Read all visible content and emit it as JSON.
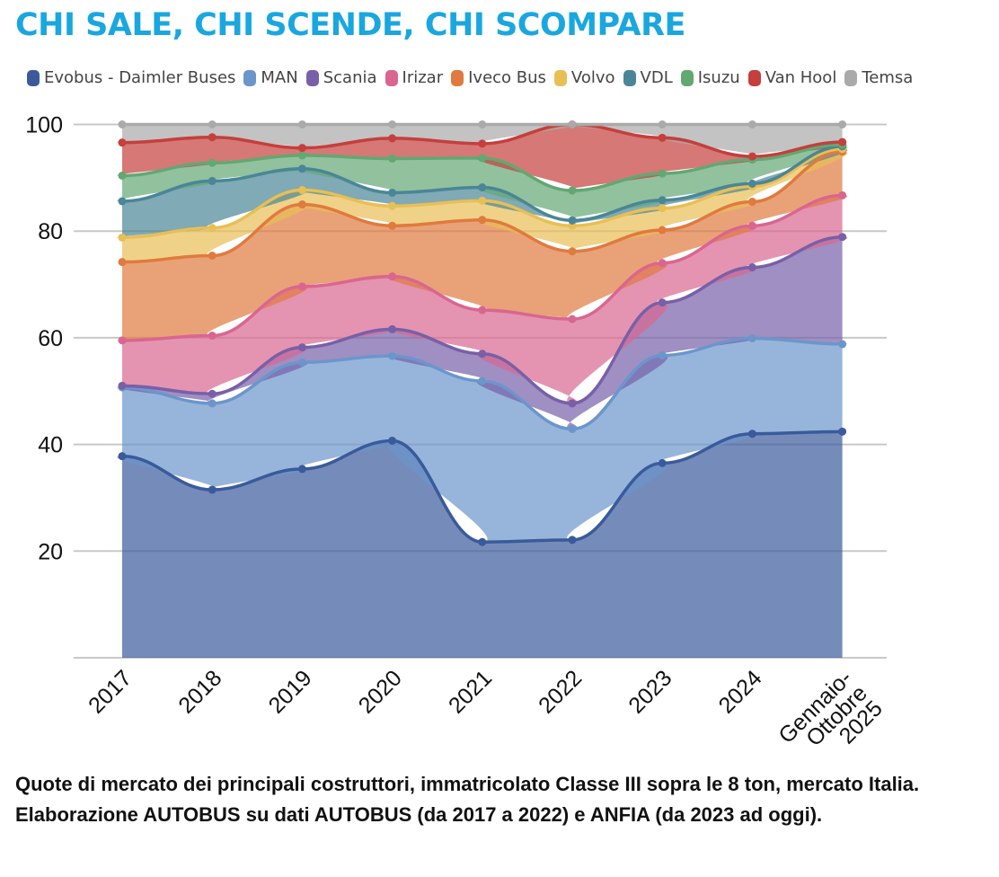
{
  "title": "CHI SALE, CHI SCENDE, CHI SCOMPARE",
  "caption": "Quote di mercato dei principali costruttori, immatricolato Classe III sopra le 8 ton, mercato Italia. Elaborazione AUTOBUS su dati AUTOBUS (da 2017 a 2022) e ANFIA (da 2023 ad oggi).",
  "chart_data": {
    "type": "area",
    "stacked": true,
    "ylim": [
      0,
      100
    ],
    "yticks": [
      "20",
      "40",
      "60",
      "80",
      "100"
    ],
    "grid": true,
    "legend_position": "top",
    "categories": [
      "2017",
      "2018",
      "2019",
      "2020",
      "2021",
      "2022",
      "2023",
      "2024",
      "Gennaio-Ottobre 2025"
    ],
    "category_lines": [
      [
        "2017"
      ],
      [
        "2018"
      ],
      [
        "2019"
      ],
      [
        "2020"
      ],
      [
        "2021"
      ],
      [
        "2022"
      ],
      [
        "2023"
      ],
      [
        "2024"
      ],
      [
        "Gennaio-",
        "Ottobre",
        "2025"
      ]
    ],
    "series": [
      {
        "name": "Evobus - Daimler Buses",
        "color": "#3a5a9b",
        "cumulative": [
          37.8,
          31.5,
          35.4,
          40.7,
          21.7,
          22.1,
          36.5,
          42.0,
          42.4
        ]
      },
      {
        "name": "MAN",
        "color": "#6b96cc",
        "cumulative": [
          50.7,
          47.7,
          55.4,
          56.6,
          51.9,
          42.9,
          56.7,
          59.9,
          58.8
        ]
      },
      {
        "name": "Scania",
        "color": "#7860a8",
        "cumulative": [
          51.0,
          49.5,
          58.2,
          61.6,
          57.0,
          47.7,
          66.6,
          73.2,
          78.9
        ]
      },
      {
        "name": "Irizar",
        "color": "#d96690",
        "cumulative": [
          59.5,
          60.4,
          69.6,
          71.5,
          65.2,
          63.5,
          74.0,
          81.0,
          86.7
        ]
      },
      {
        "name": "Iveco Bus",
        "color": "#e07a3f",
        "cumulative": [
          74.2,
          75.4,
          85.0,
          81.0,
          82.1,
          76.2,
          80.2,
          85.5,
          94.9
        ]
      },
      {
        "name": "Volvo",
        "color": "#e8bf55",
        "cumulative": [
          78.8,
          80.6,
          87.7,
          84.7,
          85.7,
          81.0,
          84.3,
          88.4,
          95.4
        ]
      },
      {
        "name": "VDL",
        "color": "#4a8696",
        "cumulative": [
          85.6,
          89.4,
          91.7,
          87.2,
          88.2,
          82.0,
          85.8,
          88.9,
          95.9
        ]
      },
      {
        "name": "Isuzu",
        "color": "#62a873",
        "cumulative": [
          90.4,
          92.8,
          94.2,
          93.6,
          93.7,
          87.6,
          90.8,
          93.4,
          96.2
        ]
      },
      {
        "name": "Van Hool",
        "color": "#c53f3c",
        "cumulative": [
          96.6,
          97.6,
          95.6,
          97.4,
          96.4,
          100.0,
          97.5,
          94.0,
          96.7
        ]
      },
      {
        "name": "Temsa",
        "color": "#aaaaaa",
        "cumulative": [
          100,
          100,
          100,
          100,
          100,
          100,
          100,
          100,
          100
        ]
      }
    ]
  }
}
